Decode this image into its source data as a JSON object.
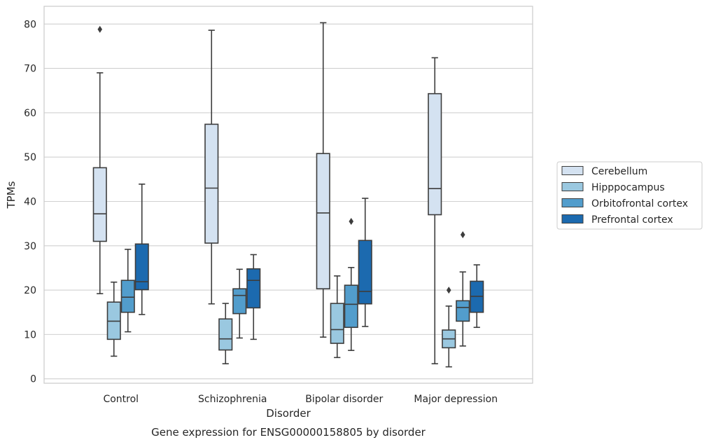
{
  "chart_data": {
    "type": "boxplot",
    "caption": "Gene expression for ENSG00000158805 by disorder",
    "xlabel": "Disorder",
    "ylabel": "TPMs",
    "ylim": [
      -1,
      84
    ],
    "y_ticks": [
      0,
      10,
      20,
      30,
      40,
      50,
      60,
      70,
      80
    ],
    "grid": "horizontal",
    "legend_position": "right",
    "categories": [
      "Control",
      "Schizophrenia",
      "Bipolar disorder",
      "Major depression"
    ],
    "series": [
      {
        "name": "Cerebellum",
        "color": "#d4e2f1",
        "boxes": [
          {
            "whisker_low": 19.2,
            "q1": 31.0,
            "median": 37.2,
            "q3": 47.6,
            "whisker_high": 69.0,
            "outliers": [
              78.8
            ]
          },
          {
            "whisker_low": 16.9,
            "q1": 30.6,
            "median": 43.0,
            "q3": 57.4,
            "whisker_high": 78.6,
            "outliers": []
          },
          {
            "whisker_low": 9.4,
            "q1": 20.3,
            "median": 37.4,
            "q3": 50.8,
            "whisker_high": 80.3,
            "outliers": []
          },
          {
            "whisker_low": 3.4,
            "q1": 37.0,
            "median": 42.9,
            "q3": 64.3,
            "whisker_high": 72.4,
            "outliers": []
          }
        ]
      },
      {
        "name": "Hipppocampus",
        "color": "#9ac8e0",
        "boxes": [
          {
            "whisker_low": 5.1,
            "q1": 8.9,
            "median": 13.0,
            "q3": 17.3,
            "whisker_high": 21.8,
            "outliers": []
          },
          {
            "whisker_low": 3.4,
            "q1": 6.5,
            "median": 9.0,
            "q3": 13.5,
            "whisker_high": 17.0,
            "outliers": []
          },
          {
            "whisker_low": 4.8,
            "q1": 8.0,
            "median": 11.1,
            "q3": 17.0,
            "whisker_high": 23.2,
            "outliers": []
          },
          {
            "whisker_low": 2.7,
            "q1": 7.0,
            "median": 9.0,
            "q3": 11.0,
            "whisker_high": 16.4,
            "outliers": [
              20.0
            ]
          }
        ]
      },
      {
        "name": "Orbitofrontal cortex",
        "color": "#529dcc",
        "boxes": [
          {
            "whisker_low": 10.6,
            "q1": 15.0,
            "median": 18.4,
            "q3": 22.2,
            "whisker_high": 29.2,
            "outliers": []
          },
          {
            "whisker_low": 9.2,
            "q1": 14.7,
            "median": 18.8,
            "q3": 20.3,
            "whisker_high": 24.7,
            "outliers": []
          },
          {
            "whisker_low": 6.4,
            "q1": 11.6,
            "median": 16.8,
            "q3": 21.1,
            "whisker_high": 25.1,
            "outliers": [
              35.5
            ]
          },
          {
            "whisker_low": 7.4,
            "q1": 13.0,
            "median": 16.1,
            "q3": 17.6,
            "whisker_high": 24.1,
            "outliers": [
              32.5
            ]
          }
        ]
      },
      {
        "name": "Prefrontal cortex",
        "color": "#1c6aaf",
        "boxes": [
          {
            "whisker_low": 14.5,
            "q1": 20.1,
            "median": 21.9,
            "q3": 30.4,
            "whisker_high": 43.9,
            "outliers": []
          },
          {
            "whisker_low": 8.9,
            "q1": 16.0,
            "median": 22.2,
            "q3": 24.8,
            "whisker_high": 28.0,
            "outliers": []
          },
          {
            "whisker_low": 11.8,
            "q1": 16.9,
            "median": 19.7,
            "q3": 31.2,
            "whisker_high": 40.7,
            "outliers": []
          },
          {
            "whisker_low": 11.6,
            "q1": 15.0,
            "median": 18.6,
            "q3": 22.0,
            "whisker_high": 25.7,
            "outliers": []
          }
        ]
      }
    ]
  }
}
